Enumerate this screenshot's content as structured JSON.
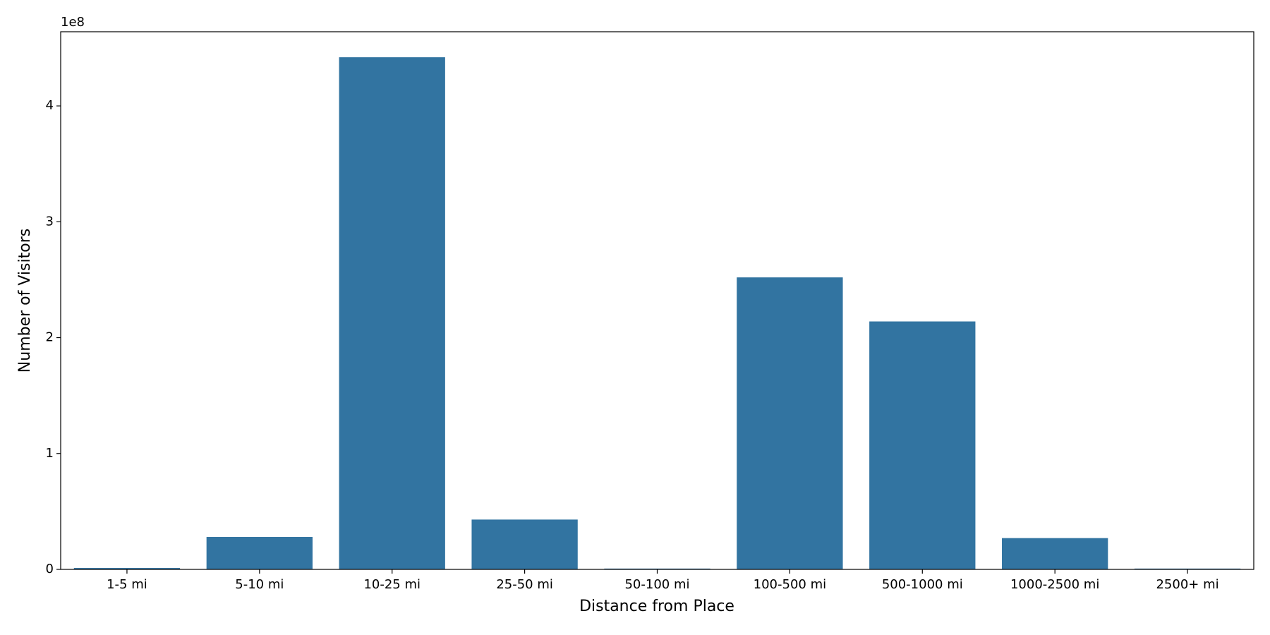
{
  "chart_data": {
    "type": "bar",
    "x_label": "Distance from Place",
    "y_label": "Number of Visitors",
    "y_offset_label": "1e8",
    "categories": [
      "1-5 mi",
      "5-10 mi",
      "10-25 mi",
      "25-50 mi",
      "50-100 mi",
      "100-500 mi",
      "500-1000 mi",
      "1000-2500 mi",
      "2500+ mi"
    ],
    "values": [
      0.012,
      0.28,
      4.42,
      0.43,
      0.007,
      2.52,
      2.14,
      0.27,
      0.007
    ],
    "color": "#3274a1",
    "ylim": [
      0,
      4.64
    ],
    "yticks": [
      0,
      1,
      2,
      3,
      4
    ]
  }
}
